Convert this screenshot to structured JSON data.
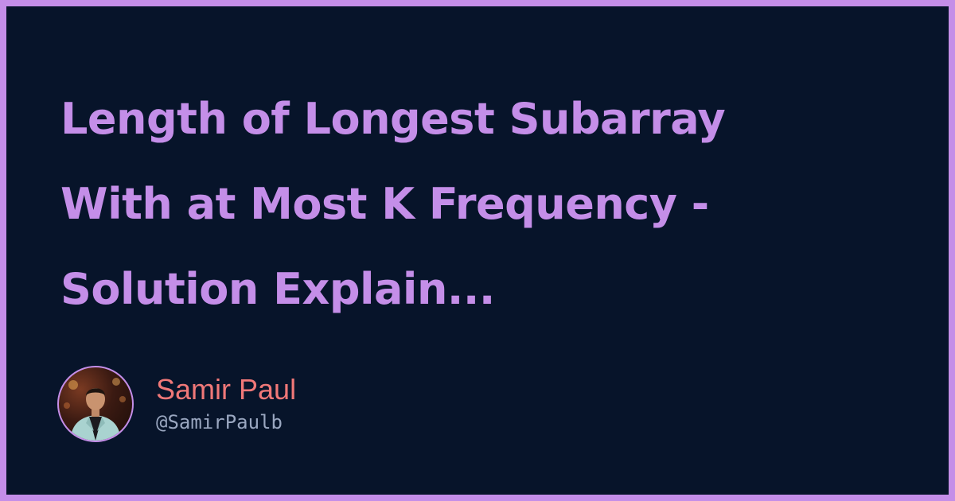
{
  "post": {
    "title": "Length of Longest Subarray\nWith at Most K Frequency -\nSolution Explain..."
  },
  "author": {
    "name": "Samir Paul",
    "handle": "@SamirPaulb"
  },
  "colors": {
    "frame": "#c48ee8",
    "background": "#07142a",
    "title": "#c48ee8",
    "name": "#f07878",
    "handle": "#9aa7c0"
  }
}
